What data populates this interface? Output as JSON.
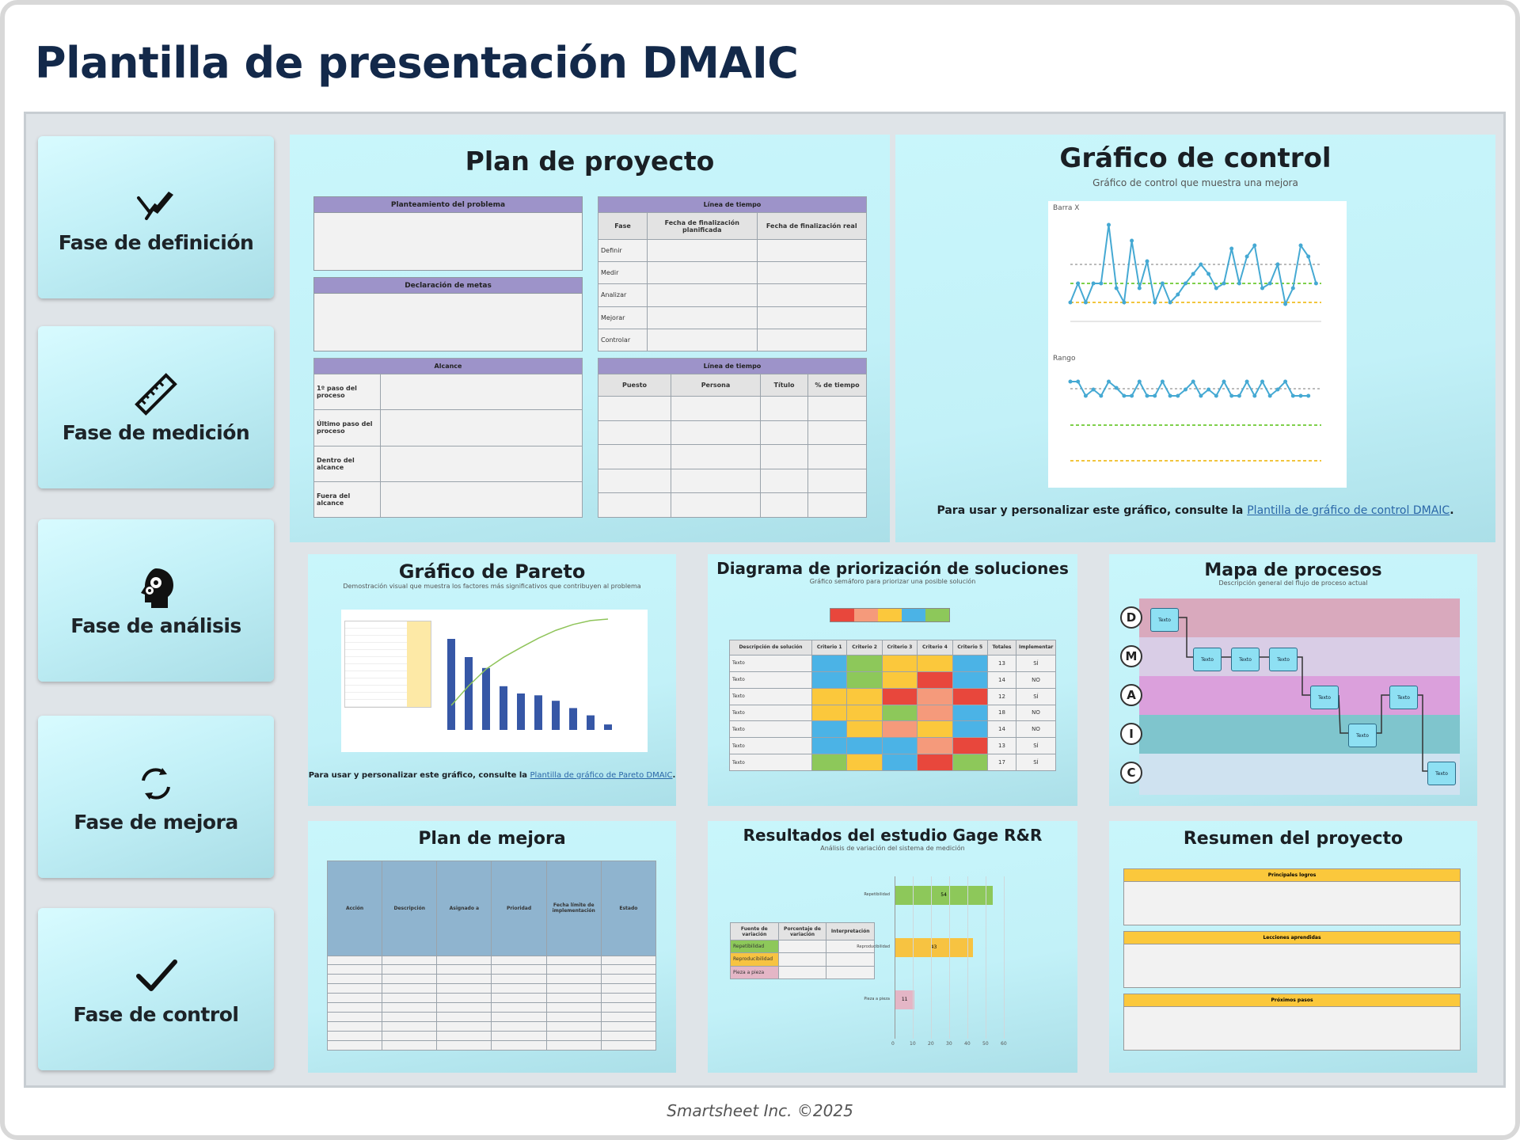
{
  "title": "Plantilla de presentación DMAIC",
  "footer": "Smartsheet Inc. ©2025",
  "phases": [
    {
      "label": "Fase de definición",
      "icon": "pen-nib-icon"
    },
    {
      "label": "Fase de medición",
      "icon": "ruler-icon"
    },
    {
      "label": "Fase de análisis",
      "icon": "head-gears-icon"
    },
    {
      "label": "Fase de mejora",
      "icon": "cycle-arrows-icon"
    },
    {
      "label": "Fase de control",
      "icon": "checkmark-icon"
    }
  ],
  "plan": {
    "title": "Plan de proyecto",
    "problem": "Planteamiento del problema",
    "goal": "Declaración de metas",
    "scope": "Alcance",
    "scope_rows": [
      "1º paso del proceso",
      "Último paso del proceso",
      "Dentro del alcance",
      "Fuera del alcance"
    ],
    "timeline": "Línea de tiempo",
    "timeline_cols": [
      "Fase",
      "Fecha de finalización planificada",
      "Fecha de finalización real"
    ],
    "timeline_rows": [
      "Definir",
      "Medir",
      "Analizar",
      "Mejorar",
      "Controlar"
    ],
    "team": "Línea de tiempo",
    "team_cols": [
      "Puesto",
      "Persona",
      "Título",
      "% de tiempo"
    ]
  },
  "control": {
    "title": "Gráfico de control",
    "subtitle": "Gráfico de control que muestra una mejora",
    "xbar_label": "Barra X",
    "range_label": "Rango",
    "cap_text": "Para usar y personalizar este gráfico, consulte la ",
    "cap_link": "Plantilla de gráfico de control DMAIC",
    "cap_end": "."
  },
  "pareto": {
    "title": "Gráfico de Pareto",
    "subtitle": "Demostración visual que muestra los factores más significativos que contribuyen al problema",
    "cap_text": "Para usar y personalizar este gráfico, consulte la ",
    "cap_link": "Plantilla de gráfico de Pareto DMAIC",
    "cap_end": "."
  },
  "prior": {
    "title": "Diagrama de priorización de soluciones",
    "subtitle": "Gráfico semáforo para priorizar una posible solución",
    "cols": [
      "Descripción de solución",
      "Criterio 1",
      "Criterio 2",
      "Criterio 3",
      "Criterio 4",
      "Criterio 5",
      "Totales",
      "Implementar"
    ],
    "rows": [
      {
        "label": "Texto",
        "total": "13",
        "impl": "SÍ"
      },
      {
        "label": "Texto",
        "total": "14",
        "impl": "NO"
      },
      {
        "label": "Texto",
        "total": "12",
        "impl": "SÍ"
      },
      {
        "label": "Texto",
        "total": "18",
        "impl": "NO"
      },
      {
        "label": "Texto",
        "total": "14",
        "impl": "NO"
      },
      {
        "label": "Texto",
        "total": "13",
        "impl": "SÍ"
      },
      {
        "label": "Texto",
        "total": "17",
        "impl": "SÍ"
      }
    ]
  },
  "map": {
    "title": "Mapa de procesos",
    "subtitle": "Descripción general del flujo de proceso actual",
    "lanes": [
      "D",
      "M",
      "A",
      "I",
      "C"
    ],
    "step": "Texto"
  },
  "improve": {
    "title": "Plan de mejora",
    "cols": [
      "Acción",
      "Descripción",
      "Asignado a",
      "Prioridad",
      "Fecha límite de implementación",
      "Estado"
    ]
  },
  "gage": {
    "title": "Resultados del estudio Gage R&R",
    "subtitle": "Análisis de variación del sistema de medición",
    "cols": [
      "Fuente de variación",
      "Porcentaje de variación",
      "Interpretación"
    ],
    "rows": [
      "Repetibilidad",
      "Reproducibilidad",
      "Pieza a pieza"
    ],
    "bars": [
      {
        "label": "Repetibilidad",
        "value": "54"
      },
      {
        "label": "Reproducibilidad",
        "value": "43"
      },
      {
        "label": "Pieza a pieza",
        "value": "11"
      }
    ],
    "ticks": [
      "0",
      "10",
      "20",
      "30",
      "40",
      "50",
      "60"
    ]
  },
  "summary": {
    "title": "Resumen del proyecto",
    "sections": [
      "Principales logros",
      "Lecciones aprendidas",
      "Próximos pasos"
    ]
  },
  "colors": {
    "accent_header": "#9d93c9",
    "card": "#c6f4fa",
    "title": "#13294a",
    "yellow": "#fbc83c",
    "green": "#8dc85a",
    "red": "#e8473c",
    "blue": "#4bb3e6",
    "orange": "#f7c341"
  }
}
